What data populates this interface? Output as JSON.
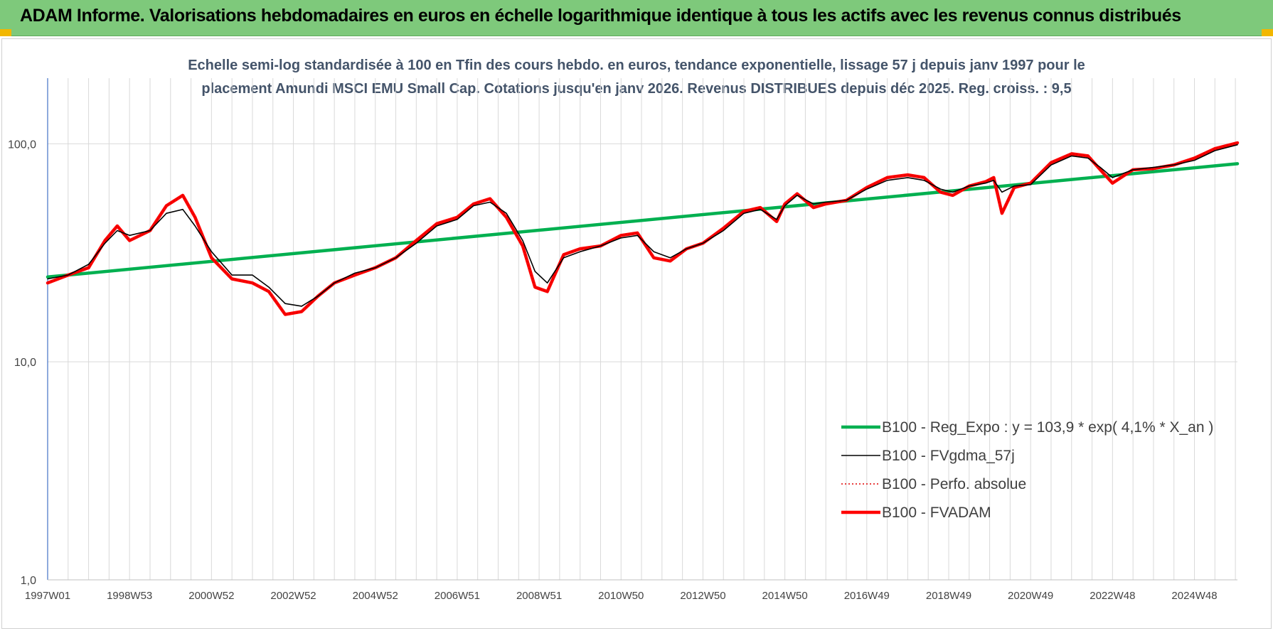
{
  "banner": {
    "title": "ADAM Informe. Valorisations hebdomadaires en euros en échelle logarithmique identique à tous les actifs avec les revenus connus distribués",
    "color": "#7ec97b"
  },
  "chart_data": {
    "type": "line",
    "title_lines": [
      "Echelle semi-log standardisée à 100 en Tfin des cours hebdo. en euros, tendance exponentielle, lissage 57 j depuis janv 1997 pour le",
      "placement Amundi MSCI  EMU Small Cap. Cotations jusqu'en janv 2026. Revenus DISTRIBUES  depuis déc 2025.  Reg. croiss. : 9,5"
    ],
    "y_scale": "log",
    "ylim": [
      1,
      200
    ],
    "y_ticks": [
      "1,0",
      "10,0",
      "100,0"
    ],
    "xlim": [
      1997.0,
      2026.05
    ],
    "x_ticks": [
      {
        "label": "1997W01",
        "x": 1997.0
      },
      {
        "label": "1998W53",
        "x": 1999.0
      },
      {
        "label": "2000W52",
        "x": 2001.0
      },
      {
        "label": "2002W52",
        "x": 2003.0
      },
      {
        "label": "2004W52",
        "x": 2005.0
      },
      {
        "label": "2006W51",
        "x": 2007.0
      },
      {
        "label": "2008W51",
        "x": 2009.0
      },
      {
        "label": "2010W50",
        "x": 2011.0
      },
      {
        "label": "2012W50",
        "x": 2013.0
      },
      {
        "label": "2014W50",
        "x": 2015.0
      },
      {
        "label": "2016W49",
        "x": 2017.0
      },
      {
        "label": "2018W49",
        "x": 2019.0
      },
      {
        "label": "2020W49",
        "x": 2021.0
      },
      {
        "label": "2022W48",
        "x": 2023.0
      },
      {
        "label": "2024W48",
        "x": 2025.0
      }
    ],
    "grid": true,
    "legend_position": "bottom-right",
    "series": [
      {
        "name": "B100 - Reg_Expo : y = 103,9 * exp( 4,1% *  X_an )",
        "color": "#00b050",
        "style": "solid-thick",
        "x": [
          1997.0,
          2026.05
        ],
        "values": [
          24.5,
          81.0
        ]
      },
      {
        "name": "B100 - FVgdma_57j",
        "color": "#000000",
        "style": "solid-thin",
        "x": [
          1997.0,
          1997.5,
          1998.0,
          1998.4,
          1998.7,
          1999.0,
          1999.5,
          1999.9,
          2000.3,
          2000.6,
          2001.0,
          2001.5,
          2002.0,
          2002.4,
          2002.8,
          2003.2,
          2003.6,
          2004.0,
          2004.5,
          2005.0,
          2005.5,
          2006.0,
          2006.5,
          2007.0,
          2007.4,
          2007.8,
          2008.2,
          2008.6,
          2008.9,
          2009.2,
          2009.6,
          2010.0,
          2010.5,
          2011.0,
          2011.4,
          2011.8,
          2012.2,
          2012.6,
          2013.0,
          2013.5,
          2014.0,
          2014.4,
          2014.8,
          2015.0,
          2015.3,
          2015.7,
          2016.0,
          2016.5,
          2017.0,
          2017.5,
          2018.0,
          2018.4,
          2018.8,
          2019.1,
          2019.5,
          2019.9,
          2020.1,
          2020.3,
          2020.6,
          2021.0,
          2021.5,
          2022.0,
          2022.4,
          2022.7,
          2023.0,
          2023.5,
          2024.0,
          2024.5,
          2025.0,
          2025.5,
          2026.05
        ],
        "values": [
          24,
          25,
          28,
          35,
          40,
          38,
          40,
          48,
          50,
          42,
          32,
          25,
          25,
          22,
          18.5,
          18,
          20,
          23,
          25.5,
          27,
          30,
          35,
          42,
          45,
          52,
          54,
          48,
          36,
          26,
          23,
          30,
          32,
          34,
          37,
          38,
          32,
          30,
          33,
          35,
          40,
          48,
          50,
          45,
          52,
          58,
          53,
          54,
          55,
          62,
          68,
          70,
          68,
          62,
          60,
          64,
          66,
          68,
          60,
          64,
          65,
          80,
          88,
          86,
          78,
          70,
          76,
          78,
          80,
          84,
          93,
          99
        ]
      },
      {
        "name": "B100 - Perfo. absolue",
        "color": "#e00000",
        "style": "dotted",
        "x": [
          1997.0,
          1997.5,
          1998.0,
          1998.4,
          1998.7,
          1999.0,
          1999.5,
          1999.9,
          2000.3,
          2000.6,
          2001.0,
          2001.5,
          2002.0,
          2002.4,
          2002.8,
          2003.2,
          2003.6,
          2004.0,
          2004.5,
          2005.0,
          2005.5,
          2006.0,
          2006.5,
          2007.0,
          2007.4,
          2007.8,
          2008.2,
          2008.6,
          2008.9,
          2009.2,
          2009.6,
          2010.0,
          2010.5,
          2011.0,
          2011.4,
          2011.8,
          2012.2,
          2012.6,
          2013.0,
          2013.5,
          2014.0,
          2014.4,
          2014.8,
          2015.0,
          2015.3,
          2015.7,
          2016.0,
          2016.5,
          2017.0,
          2017.5,
          2018.0,
          2018.4,
          2018.8,
          2019.1,
          2019.5,
          2019.9,
          2020.1,
          2020.3,
          2020.6,
          2021.0,
          2021.5,
          2022.0,
          2022.4,
          2022.7,
          2023.0,
          2023.5,
          2024.0,
          2024.5,
          2025.0,
          2025.5,
          2026.05
        ],
        "values": [
          23,
          25,
          27,
          36,
          42,
          36,
          40,
          52,
          58,
          46,
          30,
          24,
          23,
          21,
          16.5,
          17,
          20,
          23,
          25,
          27,
          30,
          36,
          43,
          46,
          53,
          56,
          46,
          34,
          22,
          21,
          31,
          33,
          34,
          38,
          39,
          30,
          29,
          33,
          35,
          41,
          49,
          51,
          44,
          53,
          59,
          51,
          53,
          55,
          63,
          70,
          72,
          70,
          60,
          58,
          64,
          67,
          70,
          48,
          63,
          66,
          82,
          90,
          88,
          76,
          66,
          76,
          77,
          80,
          86,
          95,
          101
        ]
      },
      {
        "name": "B100 - FVADAM",
        "color": "#ff0000",
        "style": "solid-thick",
        "x": [
          1997.0,
          1997.5,
          1998.0,
          1998.4,
          1998.7,
          1999.0,
          1999.5,
          1999.9,
          2000.3,
          2000.6,
          2001.0,
          2001.5,
          2002.0,
          2002.4,
          2002.8,
          2003.2,
          2003.6,
          2004.0,
          2004.5,
          2005.0,
          2005.5,
          2006.0,
          2006.5,
          2007.0,
          2007.4,
          2007.8,
          2008.2,
          2008.6,
          2008.9,
          2009.2,
          2009.6,
          2010.0,
          2010.5,
          2011.0,
          2011.4,
          2011.8,
          2012.2,
          2012.6,
          2013.0,
          2013.5,
          2014.0,
          2014.4,
          2014.8,
          2015.0,
          2015.3,
          2015.7,
          2016.0,
          2016.5,
          2017.0,
          2017.5,
          2018.0,
          2018.4,
          2018.8,
          2019.1,
          2019.5,
          2019.9,
          2020.1,
          2020.3,
          2020.6,
          2021.0,
          2021.5,
          2022.0,
          2022.4,
          2022.7,
          2023.0,
          2023.5,
          2024.0,
          2024.5,
          2025.0,
          2025.5,
          2026.05
        ],
        "values": [
          23,
          25,
          27,
          36,
          42,
          36,
          40,
          52,
          58,
          46,
          30,
          24,
          23,
          21,
          16.5,
          17,
          20,
          23,
          25,
          27,
          30,
          36,
          43,
          46,
          53,
          56,
          46,
          34,
          22,
          21,
          31,
          33,
          34,
          38,
          39,
          30,
          29,
          33,
          35,
          41,
          49,
          51,
          44,
          53,
          59,
          51,
          53,
          55,
          63,
          70,
          72,
          70,
          60,
          58,
          64,
          67,
          70,
          48,
          63,
          66,
          82,
          90,
          88,
          76,
          66,
          76,
          77,
          80,
          86,
          95,
          101
        ]
      }
    ]
  }
}
